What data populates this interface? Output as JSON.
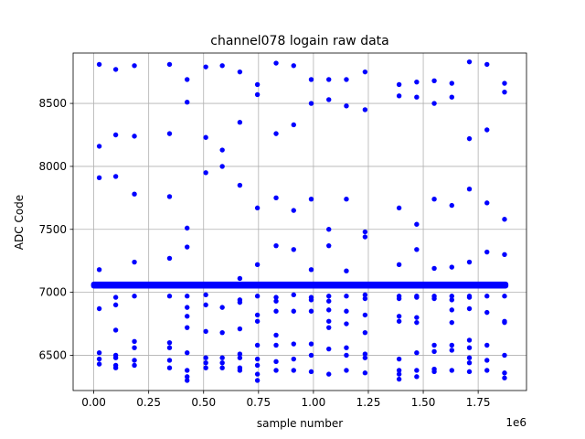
{
  "chart_data": {
    "type": "scatter",
    "title": "channel078 logain raw data",
    "xlabel": "sample number",
    "ylabel": "ADC Code",
    "x_offset_label": "1e6",
    "xlim": [
      -0.094,
      1.97
    ],
    "ylim": [
      6220,
      8900
    ],
    "x_ticks": [
      0.0,
      0.25,
      0.5,
      0.75,
      1.0,
      1.25,
      1.5,
      1.75
    ],
    "x_tick_labels": [
      "0.00",
      "0.25",
      "0.50",
      "0.75",
      "1.00",
      "1.25",
      "1.50",
      "1.75"
    ],
    "y_ticks": [
      6500,
      7000,
      7500,
      8000,
      8500
    ],
    "y_tick_labels": [
      "6500",
      "7000",
      "7500",
      "8000",
      "8500"
    ],
    "grid": true,
    "marker_color": "#0000ff",
    "band": {
      "x_range": [
        0.0,
        1.875
      ],
      "y_range": [
        7030,
        7085
      ],
      "note_y_center": 7060
    },
    "points": [
      [
        0.025,
        8810
      ],
      [
        0.025,
        8160
      ],
      [
        0.025,
        7910
      ],
      [
        0.025,
        7180
      ],
      [
        0.025,
        6870
      ],
      [
        0.025,
        6520
      ],
      [
        0.025,
        6470
      ],
      [
        0.025,
        6430
      ],
      [
        0.1,
        8770
      ],
      [
        0.1,
        8250
      ],
      [
        0.1,
        7920
      ],
      [
        0.1,
        6960
      ],
      [
        0.1,
        6900
      ],
      [
        0.1,
        6700
      ],
      [
        0.1,
        6500
      ],
      [
        0.1,
        6480
      ],
      [
        0.1,
        6420
      ],
      [
        0.1,
        6400
      ],
      [
        0.185,
        8800
      ],
      [
        0.185,
        8240
      ],
      [
        0.185,
        7780
      ],
      [
        0.185,
        7240
      ],
      [
        0.185,
        6970
      ],
      [
        0.185,
        6610
      ],
      [
        0.185,
        6560
      ],
      [
        0.185,
        6460
      ],
      [
        0.185,
        6420
      ],
      [
        0.345,
        8810
      ],
      [
        0.345,
        8260
      ],
      [
        0.345,
        7760
      ],
      [
        0.345,
        7270
      ],
      [
        0.345,
        6970
      ],
      [
        0.345,
        6600
      ],
      [
        0.345,
        6560
      ],
      [
        0.345,
        6460
      ],
      [
        0.345,
        6400
      ],
      [
        0.425,
        8690
      ],
      [
        0.425,
        8510
      ],
      [
        0.425,
        7510
      ],
      [
        0.425,
        7360
      ],
      [
        0.425,
        6970
      ],
      [
        0.425,
        6880
      ],
      [
        0.425,
        6810
      ],
      [
        0.425,
        6720
      ],
      [
        0.425,
        6520
      ],
      [
        0.425,
        6380
      ],
      [
        0.425,
        6330
      ],
      [
        0.425,
        6300
      ],
      [
        0.51,
        8790
      ],
      [
        0.51,
        8230
      ],
      [
        0.51,
        7950
      ],
      [
        0.51,
        6980
      ],
      [
        0.51,
        6900
      ],
      [
        0.51,
        6690
      ],
      [
        0.51,
        6480
      ],
      [
        0.51,
        6440
      ],
      [
        0.51,
        6400
      ],
      [
        0.585,
        8800
      ],
      [
        0.585,
        8130
      ],
      [
        0.585,
        8000
      ],
      [
        0.585,
        6880
      ],
      [
        0.585,
        6680
      ],
      [
        0.585,
        6480
      ],
      [
        0.585,
        6440
      ],
      [
        0.585,
        6400
      ],
      [
        0.665,
        8750
      ],
      [
        0.665,
        8350
      ],
      [
        0.665,
        7850
      ],
      [
        0.665,
        7110
      ],
      [
        0.665,
        6940
      ],
      [
        0.665,
        6920
      ],
      [
        0.665,
        6710
      ],
      [
        0.665,
        6510
      ],
      [
        0.665,
        6480
      ],
      [
        0.665,
        6400
      ],
      [
        0.665,
        6380
      ],
      [
        0.745,
        8650
      ],
      [
        0.745,
        8570
      ],
      [
        0.745,
        7670
      ],
      [
        0.745,
        7220
      ],
      [
        0.745,
        6970
      ],
      [
        0.745,
        6820
      ],
      [
        0.745,
        6770
      ],
      [
        0.745,
        6580
      ],
      [
        0.745,
        6470
      ],
      [
        0.745,
        6420
      ],
      [
        0.745,
        6350
      ],
      [
        0.745,
        6300
      ],
      [
        0.83,
        8820
      ],
      [
        0.83,
        8260
      ],
      [
        0.83,
        7750
      ],
      [
        0.83,
        7370
      ],
      [
        0.83,
        6960
      ],
      [
        0.83,
        6930
      ],
      [
        0.83,
        6850
      ],
      [
        0.83,
        6660
      ],
      [
        0.83,
        6580
      ],
      [
        0.83,
        6450
      ],
      [
        0.83,
        6380
      ],
      [
        0.91,
        8800
      ],
      [
        0.91,
        8330
      ],
      [
        0.91,
        7650
      ],
      [
        0.91,
        7340
      ],
      [
        0.91,
        6980
      ],
      [
        0.91,
        6850
      ],
      [
        0.91,
        6590
      ],
      [
        0.91,
        6470
      ],
      [
        0.91,
        6380
      ],
      [
        0.99,
        8690
      ],
      [
        0.99,
        8500
      ],
      [
        0.99,
        7740
      ],
      [
        0.99,
        7180
      ],
      [
        0.99,
        6960
      ],
      [
        0.99,
        6940
      ],
      [
        0.99,
        6850
      ],
      [
        0.99,
        6590
      ],
      [
        0.99,
        6500
      ],
      [
        0.99,
        6370
      ],
      [
        1.07,
        8690
      ],
      [
        1.07,
        8530
      ],
      [
        1.07,
        7500
      ],
      [
        1.07,
        7370
      ],
      [
        1.07,
        6970
      ],
      [
        1.07,
        6930
      ],
      [
        1.07,
        6860
      ],
      [
        1.07,
        6770
      ],
      [
        1.07,
        6720
      ],
      [
        1.07,
        6550
      ],
      [
        1.07,
        6350
      ],
      [
        1.15,
        8690
      ],
      [
        1.15,
        8480
      ],
      [
        1.15,
        7740
      ],
      [
        1.15,
        7170
      ],
      [
        1.15,
        6970
      ],
      [
        1.15,
        6850
      ],
      [
        1.15,
        6750
      ],
      [
        1.15,
        6560
      ],
      [
        1.15,
        6500
      ],
      [
        1.15,
        6380
      ],
      [
        1.235,
        8750
      ],
      [
        1.235,
        8450
      ],
      [
        1.235,
        7480
      ],
      [
        1.235,
        7440
      ],
      [
        1.235,
        6980
      ],
      [
        1.235,
        6950
      ],
      [
        1.235,
        6820
      ],
      [
        1.235,
        6680
      ],
      [
        1.235,
        6510
      ],
      [
        1.235,
        6480
      ],
      [
        1.235,
        6360
      ],
      [
        1.39,
        8650
      ],
      [
        1.39,
        8560
      ],
      [
        1.39,
        7670
      ],
      [
        1.39,
        7220
      ],
      [
        1.39,
        6970
      ],
      [
        1.39,
        6950
      ],
      [
        1.39,
        6810
      ],
      [
        1.39,
        6770
      ],
      [
        1.39,
        6470
      ],
      [
        1.39,
        6380
      ],
      [
        1.39,
        6350
      ],
      [
        1.39,
        6310
      ],
      [
        1.47,
        8670
      ],
      [
        1.47,
        8550
      ],
      [
        1.47,
        7540
      ],
      [
        1.47,
        7340
      ],
      [
        1.47,
        6970
      ],
      [
        1.47,
        6960
      ],
      [
        1.47,
        6800
      ],
      [
        1.47,
        6760
      ],
      [
        1.47,
        6520
      ],
      [
        1.47,
        6380
      ],
      [
        1.47,
        6330
      ],
      [
        1.55,
        8680
      ],
      [
        1.55,
        8500
      ],
      [
        1.55,
        7740
      ],
      [
        1.55,
        7190
      ],
      [
        1.55,
        6970
      ],
      [
        1.55,
        6950
      ],
      [
        1.55,
        6580
      ],
      [
        1.55,
        6530
      ],
      [
        1.55,
        6390
      ],
      [
        1.55,
        6370
      ],
      [
        1.63,
        8660
      ],
      [
        1.63,
        8550
      ],
      [
        1.63,
        7690
      ],
      [
        1.63,
        7200
      ],
      [
        1.63,
        6970
      ],
      [
        1.63,
        6940
      ],
      [
        1.63,
        6860
      ],
      [
        1.63,
        6760
      ],
      [
        1.63,
        6580
      ],
      [
        1.63,
        6540
      ],
      [
        1.63,
        6380
      ],
      [
        1.71,
        8830
      ],
      [
        1.71,
        8220
      ],
      [
        1.71,
        7820
      ],
      [
        1.71,
        7240
      ],
      [
        1.71,
        6970
      ],
      [
        1.71,
        6960
      ],
      [
        1.71,
        6870
      ],
      [
        1.71,
        6620
      ],
      [
        1.71,
        6560
      ],
      [
        1.71,
        6480
      ],
      [
        1.71,
        6440
      ],
      [
        1.71,
        6370
      ],
      [
        1.79,
        8810
      ],
      [
        1.79,
        8290
      ],
      [
        1.79,
        7710
      ],
      [
        1.79,
        7320
      ],
      [
        1.79,
        6970
      ],
      [
        1.79,
        6840
      ],
      [
        1.79,
        6580
      ],
      [
        1.79,
        6460
      ],
      [
        1.79,
        6380
      ],
      [
        1.87,
        8660
      ],
      [
        1.87,
        8590
      ],
      [
        1.87,
        7580
      ],
      [
        1.87,
        7300
      ],
      [
        1.87,
        6970
      ],
      [
        1.87,
        6770
      ],
      [
        1.87,
        6760
      ],
      [
        1.87,
        6500
      ],
      [
        1.87,
        6360
      ],
      [
        1.87,
        6320
      ]
    ]
  }
}
